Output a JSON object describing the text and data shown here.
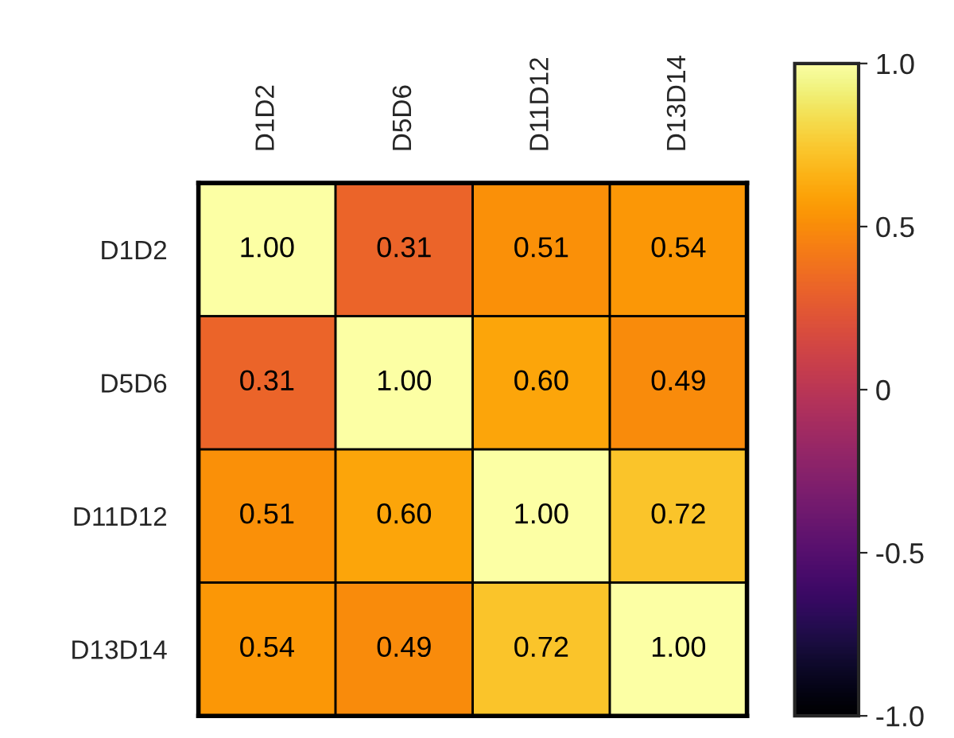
{
  "chart_data": {
    "type": "heatmap",
    "categories": [
      "D1D2",
      "D5D6",
      "D11D12",
      "D13D14"
    ],
    "y_categories": [
      "D1D2",
      "D5D6",
      "D11D12",
      "D13D14"
    ],
    "cells": [
      [
        1.0,
        0.31,
        0.51,
        0.54
      ],
      [
        0.31,
        1.0,
        0.6,
        0.49
      ],
      [
        0.51,
        0.6,
        1.0,
        0.72
      ],
      [
        0.54,
        0.49,
        0.72,
        1.0
      ]
    ],
    "cell_labels": [
      [
        "1.00",
        "0.31",
        "0.51",
        "0.54"
      ],
      [
        "0.31",
        "1.00",
        "0.60",
        "0.49"
      ],
      [
        "0.51",
        "0.60",
        "1.00",
        "0.72"
      ],
      [
        "0.54",
        "0.49",
        "0.72",
        "1.00"
      ]
    ],
    "clim": [
      -1.0,
      1.0
    ],
    "cticks": [
      {
        "value": 1.0,
        "label": "1.0"
      },
      {
        "value": 0.5,
        "label": "0.5"
      },
      {
        "value": 0,
        "label": "0"
      },
      {
        "value": -0.5,
        "label": "-0.5"
      },
      {
        "value": -1.0,
        "label": "-1.0"
      }
    ]
  }
}
